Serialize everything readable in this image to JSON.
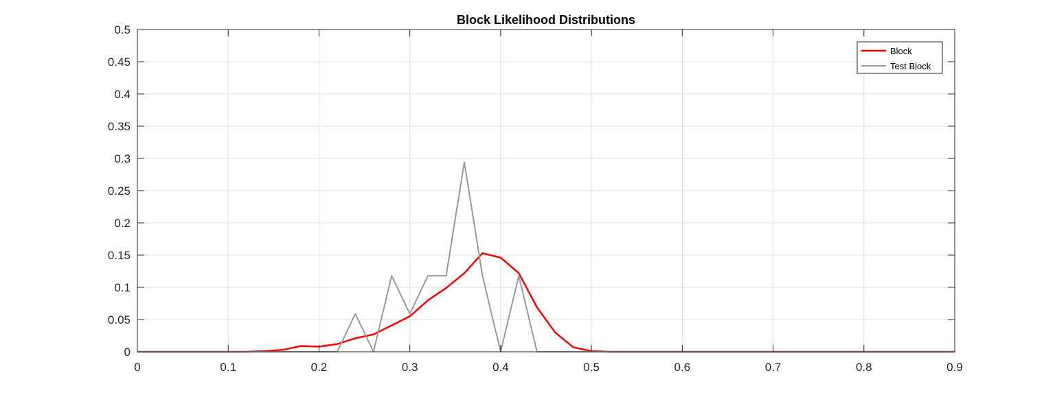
{
  "chart_data": {
    "type": "line",
    "title": "Block Likelihood Distributions",
    "xlabel": "",
    "ylabel": "",
    "xlim": [
      0,
      0.9
    ],
    "ylim": [
      0,
      0.5
    ],
    "grid": true,
    "legend_position": "top-right",
    "x_ticks": [
      0,
      0.1,
      0.2,
      0.3,
      0.4,
      0.5,
      0.6,
      0.7,
      0.8,
      0.9
    ],
    "x_tick_labels": [
      "0",
      "0.1",
      "0.2",
      "0.3",
      "0.4",
      "0.5",
      "0.6",
      "0.7",
      "0.8",
      "0.9"
    ],
    "y_ticks": [
      0,
      0.05,
      0.1,
      0.15,
      0.2,
      0.25,
      0.3,
      0.35,
      0.4,
      0.45,
      0.5
    ],
    "y_tick_labels": [
      "0",
      "0.05",
      "0.1",
      "0.15",
      "0.2",
      "0.25",
      "0.3",
      "0.35",
      "0.4",
      "0.45",
      "0.5"
    ],
    "x": [
      0,
      0.02,
      0.04,
      0.06,
      0.08,
      0.1,
      0.12,
      0.14,
      0.16,
      0.18,
      0.2,
      0.22,
      0.24,
      0.26,
      0.28,
      0.3,
      0.32,
      0.34,
      0.36,
      0.38,
      0.4,
      0.42,
      0.44,
      0.46,
      0.48,
      0.5,
      0.52,
      0.54,
      0.56,
      0.58,
      0.6,
      0.62,
      0.64,
      0.66,
      0.68,
      0.7,
      0.72,
      0.74,
      0.76,
      0.78,
      0.8,
      0.82,
      0.84,
      0.86,
      0.88,
      0.9
    ],
    "series": [
      {
        "name": "Block",
        "color": "#ff0000",
        "values": [
          0,
          0,
          0,
          0,
          0,
          0,
          0,
          0.001,
          0.003,
          0.009,
          0.008,
          0.012,
          0.021,
          0.027,
          0.041,
          0.055,
          0.08,
          0.099,
          0.122,
          0.153,
          0.146,
          0.122,
          0.069,
          0.03,
          0.007,
          0.001,
          0,
          0,
          0,
          0,
          0,
          0,
          0,
          0,
          0,
          0,
          0,
          0,
          0,
          0,
          0,
          0,
          0,
          0,
          0,
          0
        ]
      },
      {
        "name": "Test Block",
        "color": "#999999",
        "values": [
          0,
          0,
          0,
          0,
          0,
          0,
          0,
          0,
          0,
          0,
          0,
          0,
          0.059,
          0,
          0.118,
          0.059,
          0.118,
          0.118,
          0.294,
          0.118,
          0,
          0.118,
          0,
          0,
          0,
          0,
          0,
          0,
          0,
          0,
          0,
          0,
          0,
          0,
          0,
          0,
          0,
          0,
          0,
          0,
          0,
          0,
          0,
          0,
          0,
          0
        ]
      }
    ]
  }
}
